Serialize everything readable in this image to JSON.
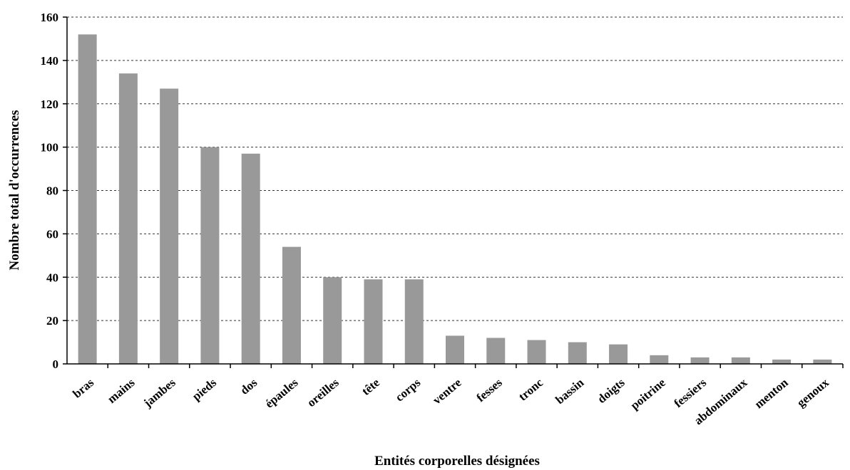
{
  "chart_data": {
    "type": "bar",
    "title": "",
    "xlabel": "Entités corporelles désignées",
    "ylabel": "Nombre total d'occurrences",
    "categories": [
      "bras",
      "mains",
      "jambes",
      "pieds",
      "dos",
      "épaules",
      "oreilles",
      "tête",
      "corps",
      "ventre",
      "fesses",
      "tronc",
      "bassin",
      "doigts",
      "poitrine",
      "fessiers",
      "abdominaux",
      "menton",
      "genoux"
    ],
    "values": [
      152,
      134,
      127,
      100,
      97,
      54,
      40,
      39,
      39,
      13,
      12,
      11,
      10,
      9,
      4,
      3,
      3,
      2,
      2
    ],
    "ylim": [
      0,
      160
    ],
    "yticks": [
      0,
      20,
      40,
      60,
      80,
      100,
      120,
      140,
      160
    ],
    "grid": true,
    "bar_color": "#999999",
    "grid_color": "#333333"
  }
}
